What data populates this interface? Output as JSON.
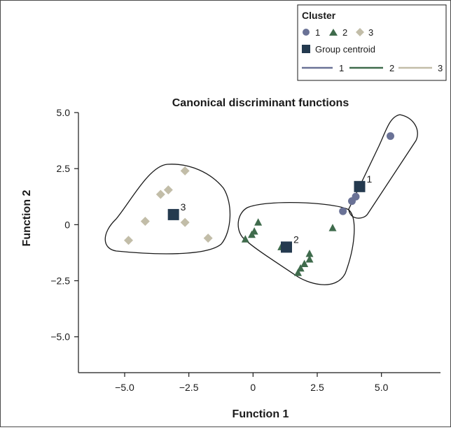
{
  "chart_data": {
    "type": "scatter",
    "title": "Canonical discriminant functions",
    "xlabel": "Function 1",
    "ylabel": "Function 2",
    "xlim": [
      -6.8,
      7.3
    ],
    "ylim": [
      -6.6,
      5.0
    ],
    "xticks": [
      -5.0,
      -2.5,
      0,
      2.5,
      5.0
    ],
    "xtick_labels": [
      "−5.0",
      "−2.5",
      "0",
      "2.5",
      "5.0"
    ],
    "yticks": [
      5.0,
      2.5,
      0,
      -2.5,
      -5.0
    ],
    "ytick_labels": [
      "5.0",
      "2.5",
      "0",
      "−2.5",
      "−5.0"
    ],
    "grid": false,
    "legend": {
      "title": "Cluster",
      "placement": "top-right",
      "marker_entries": [
        "1",
        "2",
        "3"
      ],
      "centroid_label": "Group centroid",
      "line_entries": [
        "1",
        "2",
        "3"
      ]
    },
    "series": [
      {
        "name": "1",
        "marker": "circle",
        "color": "#6a7296",
        "points": [
          [
            5.35,
            3.95
          ],
          [
            4.0,
            1.25
          ],
          [
            3.85,
            1.05
          ],
          [
            3.5,
            0.6
          ]
        ]
      },
      {
        "name": "2",
        "marker": "triangle",
        "color": "#3f6b4c",
        "points": [
          [
            0.2,
            0.1
          ],
          [
            0.05,
            -0.3
          ],
          [
            -0.05,
            -0.45
          ],
          [
            -0.3,
            -0.65
          ],
          [
            1.1,
            -1.0
          ],
          [
            3.1,
            -0.15
          ],
          [
            2.2,
            -1.3
          ],
          [
            2.2,
            -1.55
          ],
          [
            2.0,
            -1.75
          ],
          [
            1.85,
            -1.95
          ],
          [
            1.75,
            -2.15
          ]
        ]
      },
      {
        "name": "3",
        "marker": "diamond",
        "color": "#c2bda8",
        "points": [
          [
            -2.65,
            2.4
          ],
          [
            -3.3,
            1.55
          ],
          [
            -3.6,
            1.35
          ],
          [
            -4.2,
            0.15
          ],
          [
            -2.65,
            0.1
          ],
          [
            -4.85,
            -0.7
          ],
          [
            -1.75,
            -0.6
          ]
        ]
      }
    ],
    "centroids": [
      {
        "label": "1",
        "x": 4.15,
        "y": 1.7,
        "color": "#243a4f"
      },
      {
        "label": "2",
        "x": 1.3,
        "y": -1.0,
        "color": "#243a4f"
      },
      {
        "label": "3",
        "x": -3.1,
        "y": 0.45,
        "color": "#243a4f"
      }
    ],
    "line_colors": [
      "#6a7296",
      "#3f6b4c",
      "#c2bda8"
    ]
  }
}
